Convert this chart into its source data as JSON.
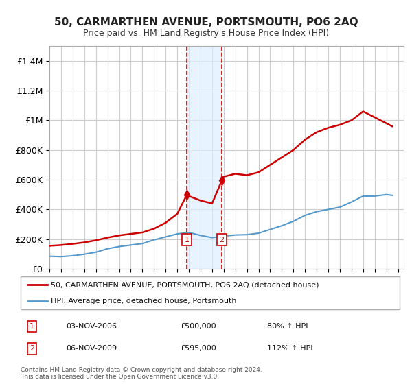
{
  "title": "50, CARMARTHEN AVENUE, PORTSMOUTH, PO6 2AQ",
  "subtitle": "Price paid vs. HM Land Registry's House Price Index (HPI)",
  "legend_line1": "50, CARMARTHEN AVENUE, PORTSMOUTH, PO6 2AQ (detached house)",
  "legend_line2": "HPI: Average price, detached house, Portsmouth",
  "footnote": "Contains HM Land Registry data © Crown copyright and database right 2024.\nThis data is licensed under the Open Government Licence v3.0.",
  "table_rows": [
    {
      "num": "1",
      "date": "03-NOV-2006",
      "price": "£500,000",
      "hpi": "80% ↑ HPI"
    },
    {
      "num": "2",
      "date": "06-NOV-2009",
      "price": "£595,000",
      "hpi": "112% ↑ HPI"
    }
  ],
  "sale1_x": 2006.84,
  "sale1_y": 500000,
  "sale2_x": 2009.84,
  "sale2_y": 595000,
  "vline1_x": 2006.84,
  "vline2_x": 2009.84,
  "shade_x1": 2006.84,
  "shade_x2": 2009.84,
  "ylim": [
    0,
    1500000
  ],
  "xlim_left": 1995.0,
  "xlim_right": 2025.5,
  "red_color": "#cc0000",
  "blue_color": "#6699cc",
  "hpi_line_color": "#5599cc",
  "background_color": "#ffffff",
  "grid_color": "#cccccc",
  "shade_color": "#ddeeff",
  "yticks": [
    0,
    200000,
    400000,
    600000,
    800000,
    1000000,
    1200000,
    1400000
  ],
  "ytick_labels": [
    "£0",
    "£200K",
    "£400K",
    "£600K",
    "£800K",
    "£1M",
    "£1.2M",
    "£1.4M"
  ],
  "red_line_data_x": [
    1995,
    1996,
    1997,
    1998,
    1999,
    2000,
    2001,
    2002,
    2003,
    2004,
    2005,
    2006,
    2006.84,
    2007,
    2008,
    2009,
    2009.84,
    2010,
    2011,
    2012,
    2013,
    2014,
    2015,
    2016,
    2017,
    2018,
    2019,
    2020,
    2021,
    2022,
    2023,
    2024,
    2024.5
  ],
  "red_line_data_y": [
    155000,
    160000,
    168000,
    178000,
    192000,
    210000,
    225000,
    235000,
    245000,
    270000,
    310000,
    370000,
    500000,
    490000,
    460000,
    440000,
    595000,
    620000,
    640000,
    630000,
    650000,
    700000,
    750000,
    800000,
    870000,
    920000,
    950000,
    970000,
    1000000,
    1060000,
    1020000,
    980000,
    960000
  ],
  "blue_line_data_x": [
    1995,
    1996,
    1997,
    1998,
    1999,
    2000,
    2001,
    2002,
    2003,
    2004,
    2005,
    2006,
    2007,
    2008,
    2009,
    2010,
    2011,
    2012,
    2013,
    2014,
    2015,
    2016,
    2017,
    2018,
    2019,
    2020,
    2021,
    2022,
    2023,
    2024,
    2024.5
  ],
  "blue_line_data_y": [
    85000,
    82000,
    88000,
    98000,
    112000,
    135000,
    150000,
    160000,
    170000,
    195000,
    215000,
    235000,
    245000,
    225000,
    210000,
    220000,
    228000,
    230000,
    240000,
    265000,
    290000,
    320000,
    360000,
    385000,
    400000,
    415000,
    450000,
    490000,
    490000,
    500000,
    495000
  ]
}
